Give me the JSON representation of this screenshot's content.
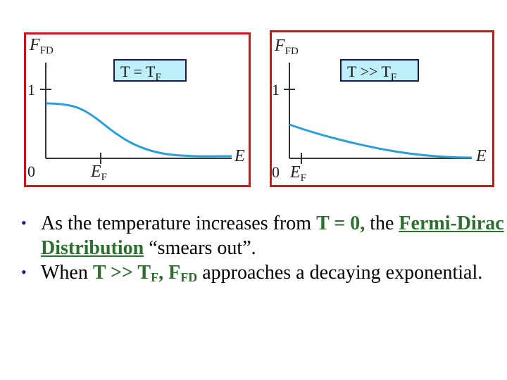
{
  "panels": [
    {
      "label": "T = T",
      "label_sub": "F",
      "y_axis_label": "F",
      "y_axis_sub": "FD",
      "y_tick": "1",
      "origin": "0",
      "x_axis_label": "E",
      "x_tick": "E",
      "x_tick_sub": "F"
    },
    {
      "label": "T >> T",
      "label_sub": "F",
      "y_axis_label": "F",
      "y_axis_sub": "FD",
      "y_tick": "1",
      "origin": "0",
      "x_axis_label": "E",
      "x_tick": "E",
      "x_tick_sub": "F"
    }
  ],
  "colors": {
    "frame": "#c8161d",
    "curve": "#2a9fd6",
    "label_box": "#bfeffb",
    "highlight": "#2e6e2e",
    "bullet": "#1c1c78"
  },
  "bullets": [
    {
      "t1": "As the temperature increases from ",
      "h1": "T = 0,",
      "t2": " the ",
      "h2": "Fermi-Dirac Distribution",
      "t3": " “smears out”."
    },
    {
      "t1": "When ",
      "h1": "T >> T",
      "h1_sub": "F",
      "h2": ", F",
      "h2_sub": "FD",
      "t2": " approaches a decaying exponential."
    }
  ]
}
